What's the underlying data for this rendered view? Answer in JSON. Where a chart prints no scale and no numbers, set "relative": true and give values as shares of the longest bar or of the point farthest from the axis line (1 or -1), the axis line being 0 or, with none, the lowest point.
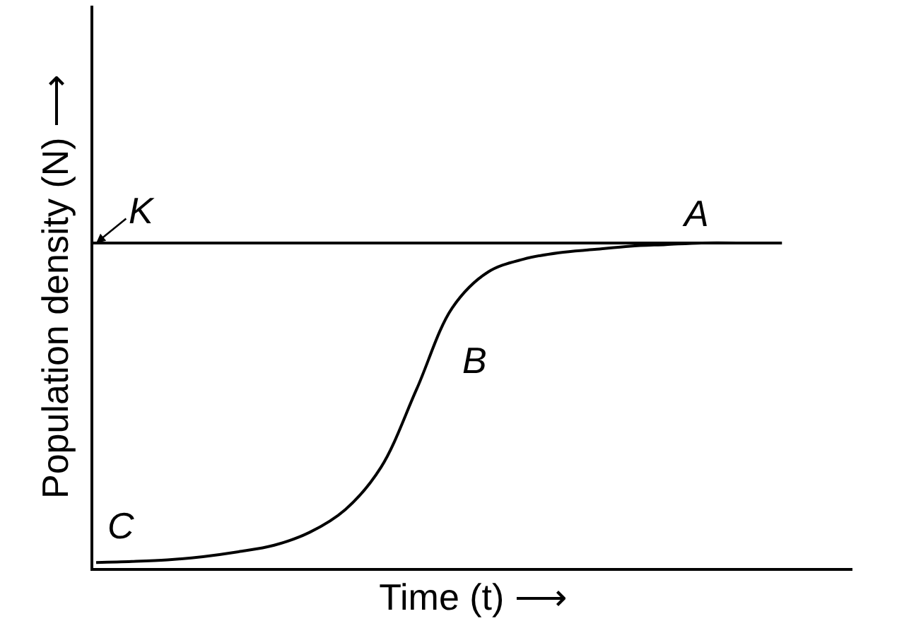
{
  "chart_data": {
    "type": "line",
    "relative": true,
    "xlabel": "Time (t) ⟶",
    "ylabel": "Population density (N) ⟶",
    "categories": [
      null,
      null,
      null,
      null,
      null,
      null,
      null,
      null,
      null,
      null,
      null,
      null,
      null,
      null,
      null,
      null,
      null,
      null,
      null
    ],
    "series": [
      {
        "color": "#000000",
        "values": [
          0.017,
          0.02,
          0.025,
          0.035,
          0.05,
          0.07,
          0.11,
          0.18,
          0.31,
          0.55,
          0.8,
          0.91,
          0.95,
          0.97,
          0.98,
          0.99,
          0.995,
          1,
          1
        ]
      }
    ],
    "ref_lines": [
      {
        "axis": "y",
        "value": 1,
        "label": "K",
        "color": "#000000"
      }
    ],
    "annotations": [
      "A",
      "B",
      "C"
    ],
    "marker": "none",
    "line_style": "solid"
  }
}
